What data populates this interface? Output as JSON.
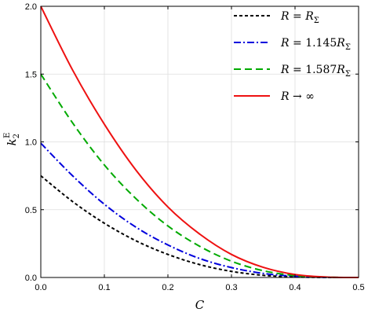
{
  "chart_data": {
    "type": "line",
    "xlabel": "C",
    "ylabel": {
      "base": "k",
      "sup": "E",
      "sub": "2"
    },
    "xlim": [
      0.0,
      0.5
    ],
    "ylim": [
      0.0,
      2.0
    ],
    "xticks": [
      0.0,
      0.1,
      0.2,
      0.3,
      0.4,
      0.5
    ],
    "xtick_labels": [
      "0.0",
      "0.1",
      "0.2",
      "0.3",
      "0.4",
      "0.5"
    ],
    "yticks": [
      0.0,
      0.5,
      1.0,
      1.5,
      2.0
    ],
    "ytick_labels": [
      "0.0",
      "0.5",
      "1.0",
      "1.5",
      "2.0"
    ],
    "grid": true,
    "legend_position": "top-right",
    "series": [
      {
        "name": "R = R_Σ",
        "legend": {
          "lhs": "R",
          "op": " = ",
          "coef": "",
          "rhs": "R",
          "rhs_sub": "Σ"
        },
        "color": "#000000",
        "dash": "short-dash",
        "x": [
          0.0,
          0.05,
          0.1,
          0.15,
          0.2,
          0.25,
          0.3,
          0.35,
          0.4,
          0.45,
          0.5
        ],
        "y": [
          0.75,
          0.56,
          0.4,
          0.27,
          0.17,
          0.095,
          0.045,
          0.016,
          0.004,
          0.0005,
          0.0
        ]
      },
      {
        "name": "R = 1.145R_Σ",
        "legend": {
          "lhs": "R",
          "op": " = ",
          "coef": "1.145",
          "rhs": "R",
          "rhs_sub": "Σ"
        },
        "color": "#0000dd",
        "dash": "dash-dot",
        "x": [
          0.0,
          0.05,
          0.1,
          0.15,
          0.2,
          0.25,
          0.3,
          0.35,
          0.4,
          0.45,
          0.5
        ],
        "y": [
          0.99,
          0.75,
          0.54,
          0.37,
          0.24,
          0.14,
          0.073,
          0.03,
          0.009,
          0.001,
          0.0
        ]
      },
      {
        "name": "R = 1.587R_Σ",
        "legend": {
          "lhs": "R",
          "op": " = ",
          "coef": "1.587",
          "rhs": "R",
          "rhs_sub": "Σ"
        },
        "color": "#00aa00",
        "dash": "long-dash",
        "x": [
          0.0,
          0.05,
          0.1,
          0.15,
          0.2,
          0.25,
          0.3,
          0.35,
          0.4,
          0.45,
          0.5
        ],
        "y": [
          1.5,
          1.14,
          0.83,
          0.58,
          0.38,
          0.23,
          0.12,
          0.05,
          0.014,
          0.002,
          0.0
        ]
      },
      {
        "name": "R → ∞",
        "legend": {
          "lhs": "R",
          "op": " → ",
          "coef": "",
          "rhs": "∞",
          "rhs_sub": ""
        },
        "color": "#ee1111",
        "dash": "solid",
        "x": [
          0.0,
          0.05,
          0.1,
          0.15,
          0.2,
          0.25,
          0.3,
          0.35,
          0.4,
          0.45,
          0.5
        ],
        "y": [
          2.0,
          1.53,
          1.13,
          0.79,
          0.52,
          0.32,
          0.17,
          0.075,
          0.022,
          0.003,
          0.0
        ]
      }
    ]
  }
}
